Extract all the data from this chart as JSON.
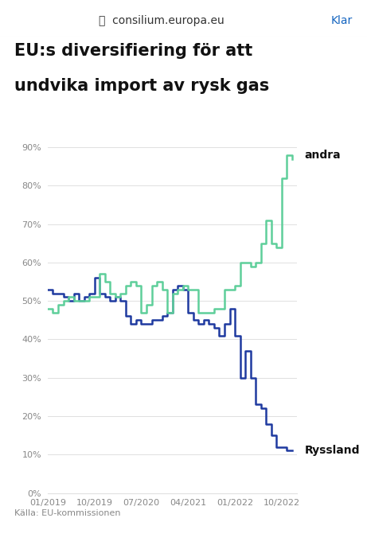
{
  "title_line1": "EU:s diversifiering för att",
  "title_line2": "undvika import av rysk gas",
  "header_text": "consilium.europa.eu",
  "header_right": "Klar",
  "source": "Källa: EU-kommissionen",
  "label_andra": "andra",
  "label_ryssland": "Ryssland",
  "color_andra": "#5ecf9a",
  "color_ryssland": "#1f3aa0",
  "background_color": "#ffffff",
  "chart_bg": "#ffffff",
  "chart_border": "#e0e0e0",
  "ylim": [
    0,
    95
  ],
  "yticks": [
    0,
    10,
    20,
    30,
    40,
    50,
    60,
    70,
    80,
    90
  ],
  "xtick_labels": [
    "01/2019",
    "10/2019",
    "07/2020",
    "04/2021",
    "01/2022",
    "10/2022"
  ],
  "ryssland_values": [
    53,
    52,
    52,
    51,
    50,
    52,
    50,
    51,
    52,
    56,
    52,
    51,
    50,
    51,
    50,
    46,
    44,
    45,
    44,
    44,
    45,
    45,
    46,
    47,
    53,
    54,
    53,
    47,
    45,
    44,
    45,
    44,
    43,
    41,
    44,
    48,
    41,
    30,
    37,
    30,
    23,
    22,
    18,
    15,
    12,
    12,
    11,
    11
  ],
  "andra_values": [
    48,
    47,
    49,
    50,
    51,
    50,
    50,
    50,
    51,
    51,
    57,
    55,
    52,
    51,
    52,
    54,
    55,
    54,
    47,
    49,
    54,
    55,
    53,
    47,
    52,
    53,
    54,
    53,
    53,
    47,
    47,
    47,
    48,
    48,
    53,
    53,
    54,
    60,
    60,
    59,
    60,
    65,
    71,
    65,
    64,
    82,
    88,
    87
  ],
  "grid_color": "#e0e0e0",
  "tick_label_color": "#888888",
  "title_fontsize": 15,
  "tick_fontsize": 8,
  "label_fontsize": 10,
  "source_fontsize": 8
}
